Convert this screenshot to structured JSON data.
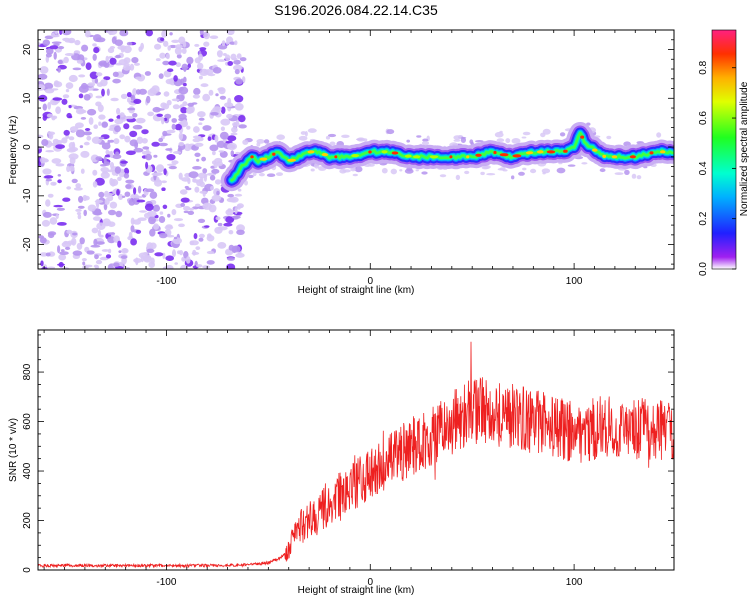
{
  "title": "S196.2026.084.22.14.C35",
  "colors": {
    "snr_line": "#ee2020",
    "noise_light": "#d8c8f6",
    "noise_mid": "#b594ee",
    "noise_dark": "#7a2df0",
    "axis": "#000000"
  },
  "chart_data": [
    {
      "type": "heatmap",
      "name": "spectrogram",
      "xlabel": "Height of straight line (km)",
      "ylabel": "Frequency (Hz)",
      "xlim": [
        -163,
        149
      ],
      "ylim": [
        -25,
        24
      ],
      "xticks": [
        -100,
        0,
        100
      ],
      "xtick_labels": [
        "-100",
        "0",
        "100"
      ],
      "yticks": [
        -20,
        -10,
        0,
        10,
        20
      ],
      "ytick_labels": [
        "-20",
        "-10",
        "0",
        "10",
        "20"
      ],
      "noise_region_x": [
        -163,
        -65
      ],
      "ridge": {
        "x": [
          -68,
          -63,
          -58,
          -55,
          -50,
          -45,
          -40,
          -35,
          -30,
          -25,
          -20,
          -10,
          0,
          10,
          20,
          30,
          40,
          50,
          60,
          70,
          80,
          90,
          95,
          100,
          103,
          105,
          108,
          115,
          120,
          130,
          140,
          149
        ],
        "freq": [
          -7,
          -4,
          -2,
          -3,
          -2,
          -1,
          -3,
          -2,
          -1,
          -1,
          -2,
          -2,
          -1,
          -1,
          -2,
          -2,
          -2,
          -2,
          -1,
          -2,
          -1,
          -1,
          -1,
          0,
          3,
          1,
          0,
          -2,
          -2,
          -2,
          -1,
          -1
        ]
      },
      "colorbar": {
        "label": "Normalized spectral amplitude",
        "range": [
          0,
          0.95
        ],
        "ticks": [
          0.0,
          0.2,
          0.4,
          0.6,
          0.8
        ],
        "tick_labels": [
          "0.0",
          "0.2",
          "0.4",
          "0.6",
          "0.8"
        ]
      }
    },
    {
      "type": "line",
      "name": "snr",
      "xlabel": "Height of straight line (km)",
      "ylabel": "SNR (10 * v/v)",
      "xlim": [
        -163,
        149
      ],
      "ylim": [
        0,
        970
      ],
      "xticks": [
        -100,
        0,
        100
      ],
      "xtick_labels": [
        "-100",
        "0",
        "100"
      ],
      "yticks": [
        0,
        200,
        400,
        600,
        800
      ],
      "ytick_labels": [
        "0",
        "200",
        "400",
        "600",
        "800"
      ],
      "series": [
        {
          "name": "SNR",
          "x": [
            -163,
            -140,
            -120,
            -100,
            -80,
            -60,
            -50,
            -45,
            -40,
            -38,
            -35,
            -30,
            -25,
            -20,
            -15,
            -10,
            -5,
            0,
            5,
            10,
            15,
            20,
            25,
            30,
            35,
            40,
            45,
            50,
            55,
            60,
            65,
            70,
            75,
            80,
            85,
            90,
            95,
            100,
            105,
            110,
            115,
            120,
            125,
            130,
            135,
            140,
            145,
            149
          ],
          "y": [
            18,
            18,
            18,
            18,
            18,
            20,
            30,
            45,
            80,
            140,
            170,
            200,
            230,
            260,
            300,
            330,
            360,
            380,
            410,
            440,
            470,
            500,
            520,
            540,
            560,
            590,
            620,
            640,
            650,
            640,
            630,
            620,
            610,
            600,
            590,
            580,
            570,
            560,
            560,
            570,
            580,
            570,
            560,
            560,
            570,
            560,
            570,
            575
          ]
        }
      ]
    }
  ]
}
